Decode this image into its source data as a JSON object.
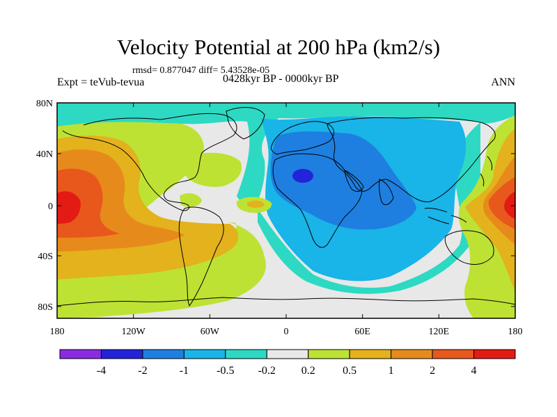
{
  "title": "Velocity Potential at 200 hPa (km2/s)",
  "stats_line": "rmsd= 0.877047 diff= 5.43528e-05",
  "left_label": "Expt = teVub-tevua",
  "center_label": "0428kyr BP - 0000kyr BP",
  "right_label": "ANN",
  "y_ticks": [
    "80N",
    "40N",
    "0",
    "40S",
    "80S"
  ],
  "x_ticks": [
    "180",
    "120W",
    "60W",
    "0",
    "60E",
    "120E",
    "180"
  ],
  "colorbar": {
    "labels": [
      "-4",
      "-2",
      "-1",
      "-0.5",
      "-0.2",
      "0.2",
      "0.5",
      "1",
      "2",
      "4"
    ],
    "colors": [
      "#8a2be2",
      "#2323d9",
      "#1e7fe0",
      "#19b4e8",
      "#2dd9c3",
      "#e8e8e8",
      "#bde234",
      "#e3b21c",
      "#e78a1c",
      "#e8571c",
      "#e31b14"
    ]
  },
  "map_colors": {
    "c_m4": "#2323d9",
    "c_m2": "#1e7fe0",
    "c_m1": "#19b4e8",
    "c_m05": "#2dd9c3",
    "c_0": "#e8e8e8",
    "c_p02": "#bde234",
    "c_p05": "#e3b21c",
    "c_p1": "#e78a1c",
    "c_p2": "#e8571c",
    "c_p4": "#e31b14"
  }
}
